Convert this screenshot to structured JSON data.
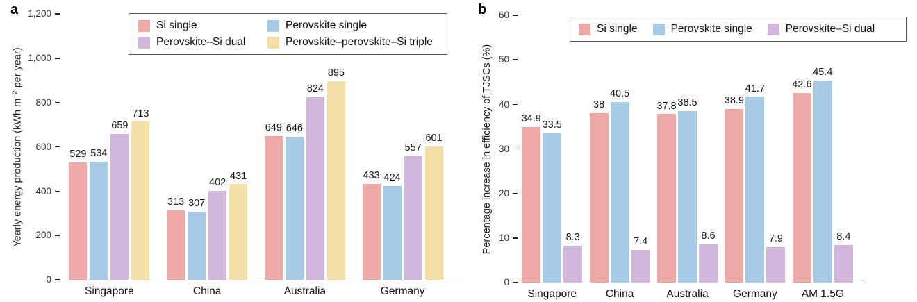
{
  "panels": [
    {
      "letter": "a"
    },
    {
      "letter": "b"
    }
  ],
  "chart_data": [
    {
      "type": "bar",
      "panel": "a",
      "title": "",
      "xlabel": "",
      "ylabel": "Yearly energy production (kWh m⁻² per year)",
      "ylabel_parts": [
        "Yearly energy production (kWh m",
        "−2",
        " per year)"
      ],
      "ylim": [
        0,
        1200
      ],
      "yticks": [
        {
          "label": "0",
          "value": 0
        },
        {
          "label": "200",
          "value": 200
        },
        {
          "label": "400",
          "value": 400
        },
        {
          "label": "600",
          "value": 600
        },
        {
          "label": "800",
          "value": 800
        },
        {
          "label": "1,000",
          "value": 1000
        },
        {
          "label": "1,200",
          "value": 1200
        }
      ],
      "grid": false,
      "legend_position": "top",
      "legend_columns": 2,
      "categories": [
        "Singapore",
        "China",
        "Australia",
        "Germany"
      ],
      "series": [
        {
          "name": "Si single",
          "color": "#ECA9A6",
          "values": [
            529,
            313,
            649,
            433
          ],
          "labels": [
            "529",
            "313",
            "649",
            "433"
          ]
        },
        {
          "name": "Perovskite single",
          "color": "#A7CBE7",
          "values": [
            534,
            307,
            646,
            424
          ],
          "labels": [
            "534",
            "307",
            "646",
            "424"
          ]
        },
        {
          "name": "Perovskite–Si dual",
          "color": "#D3B6DB",
          "values": [
            659,
            402,
            824,
            557
          ],
          "labels": [
            "659",
            "402",
            "824",
            "557"
          ]
        },
        {
          "name": "Perovskite–perovskite–Si triple",
          "color": "#F2E0A4",
          "values": [
            713,
            431,
            895,
            601
          ],
          "labels": [
            "713",
            "431",
            "895",
            "601"
          ]
        }
      ]
    },
    {
      "type": "bar",
      "panel": "b",
      "title": "",
      "xlabel": "",
      "ylabel": "Percentage increase in efficiency of TJSCs (%)",
      "ylim": [
        0,
        60
      ],
      "yticks": [
        {
          "label": "0",
          "value": 0
        },
        {
          "label": "10",
          "value": 10
        },
        {
          "label": "20",
          "value": 20
        },
        {
          "label": "30",
          "value": 30
        },
        {
          "label": "40",
          "value": 40
        },
        {
          "label": "50",
          "value": 50
        },
        {
          "label": "60",
          "value": 60
        }
      ],
      "grid": false,
      "legend_position": "top",
      "legend_columns": 3,
      "categories": [
        "Singapore",
        "China",
        "Australia",
        "Germany",
        "AM 1.5G"
      ],
      "series": [
        {
          "name": "Si single",
          "color": "#ECA9A6",
          "values": [
            34.9,
            38,
            37.8,
            38.9,
            42.6
          ],
          "labels": [
            "34.9",
            "38",
            "37.8",
            "38.9",
            "42.6"
          ]
        },
        {
          "name": "Perovskite single",
          "color": "#A7CBE7",
          "values": [
            33.5,
            40.5,
            38.5,
            41.7,
            45.4
          ],
          "labels": [
            "33.5",
            "40.5",
            "38.5",
            "41.7",
            "45.4"
          ]
        },
        {
          "name": "Perovskite–Si dual",
          "color": "#D3B6DB",
          "values": [
            8.3,
            7.4,
            8.6,
            7.9,
            8.4
          ],
          "labels": [
            "8.3",
            "7.4",
            "8.6",
            "7.9",
            "8.4"
          ]
        }
      ]
    }
  ]
}
